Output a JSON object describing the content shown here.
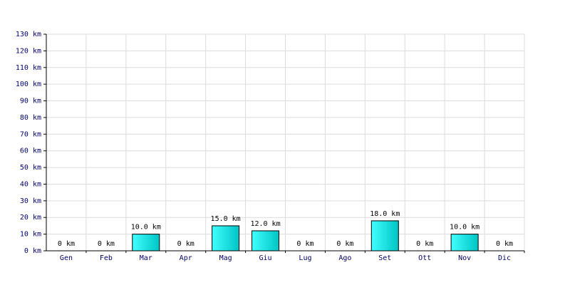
{
  "chart_data": {
    "type": "bar",
    "categories": [
      "Gen",
      "Feb",
      "Mar",
      "Apr",
      "Mag",
      "Giu",
      "Lug",
      "Ago",
      "Set",
      "Ott",
      "Nov",
      "Dic"
    ],
    "values": [
      0,
      0,
      10,
      0,
      15,
      12,
      0,
      0,
      18,
      0,
      10,
      0
    ],
    "value_labels": [
      "0 km",
      "0 km",
      "10.0 km",
      "0 km",
      "15.0 km",
      "12.0 km",
      "0 km",
      "0 km",
      "18.0 km",
      "0 km",
      "10.0 km",
      "0 km"
    ],
    "color": "#00c4c4",
    "ylim": [
      0,
      130
    ],
    "yticks": [
      {
        "value": 0,
        "label": "0 km"
      },
      {
        "value": 10,
        "label": "10 km"
      },
      {
        "value": 20,
        "label": "20 km"
      },
      {
        "value": 30,
        "label": "30 km"
      },
      {
        "value": 40,
        "label": "40 km"
      },
      {
        "value": 50,
        "label": "50 km"
      },
      {
        "value": 60,
        "label": "60 km"
      },
      {
        "value": 70,
        "label": "70 km"
      },
      {
        "value": 80,
        "label": "80 km"
      },
      {
        "value": 90,
        "label": "90 km"
      },
      {
        "value": 100,
        "label": "100 km"
      },
      {
        "value": 110,
        "label": "110 km"
      },
      {
        "value": 120,
        "label": "120 km"
      },
      {
        "value": 130,
        "label": "130 km"
      }
    ],
    "grid": true
  }
}
